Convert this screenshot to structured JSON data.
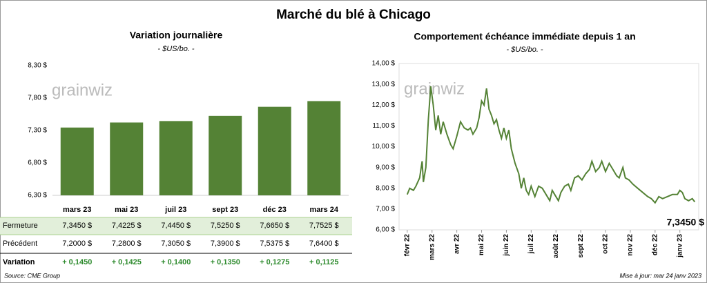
{
  "title": "Marché du blé à Chicago",
  "chart_data": [
    {
      "type": "bar",
      "title": "Variation journalière",
      "subtitle": "- $US/bo. -",
      "logo": "grainwiz",
      "color": "#548235",
      "categories": [
        "mars 23",
        "mai 23",
        "juil 23",
        "sept 23",
        "déc 23",
        "mars 24"
      ],
      "values": [
        7.345,
        7.4225,
        7.445,
        7.525,
        7.665,
        7.7525
      ],
      "value_labels": [
        "7,3450  $",
        "7,4225  $",
        "7,4450  $",
        "7,5250  $",
        "7,6650  $",
        "7,7525  $"
      ],
      "ylim": [
        6.3,
        8.3
      ],
      "yticks": [
        {
          "value": 6.3,
          "label": "6,30 $"
        },
        {
          "value": 6.8,
          "label": "6,80 $"
        },
        {
          "value": 7.3,
          "label": "7,30 $"
        },
        {
          "value": 7.8,
          "label": "7,80 $"
        },
        {
          "value": 8.3,
          "label": "8,30 $"
        }
      ]
    },
    {
      "type": "line",
      "title": "Comportement  échéance immédiate depuis 1 an",
      "subtitle": "- $US/bo. -",
      "logo": "grainwiz",
      "color": "#548235",
      "annotation": "7,3450 $",
      "x": [
        0,
        0.1,
        0.25,
        0.35,
        0.5,
        0.6,
        0.65,
        0.75,
        0.85,
        0.95,
        1.05,
        1.15,
        1.25,
        1.35,
        1.45,
        1.6,
        1.75,
        1.85,
        2.0,
        2.15,
        2.3,
        2.45,
        2.55,
        2.65,
        2.8,
        2.9,
        3.0,
        3.1,
        3.2,
        3.3,
        3.4,
        3.5,
        3.6,
        3.7,
        3.8,
        3.9,
        4.0,
        4.1,
        4.2,
        4.35,
        4.5,
        4.6,
        4.7,
        4.8,
        4.9,
        5.0,
        5.15,
        5.3,
        5.45,
        5.6,
        5.75,
        5.85,
        6.0,
        6.1,
        6.2,
        6.35,
        6.5,
        6.6,
        6.75,
        6.9,
        7.05,
        7.2,
        7.35,
        7.45,
        7.6,
        7.75,
        7.85,
        8.0,
        8.15,
        8.3,
        8.45,
        8.55,
        8.7,
        8.8,
        8.95,
        9.1,
        9.3,
        9.5,
        9.7,
        9.85,
        10.0,
        10.15,
        10.3,
        10.5,
        10.7,
        10.9,
        11.0,
        11.1,
        11.2,
        11.35,
        11.5,
        11.6
      ],
      "values": [
        7.7,
        8.0,
        7.9,
        8.1,
        8.5,
        9.3,
        8.3,
        9.0,
        11.3,
        12.9,
        12.0,
        10.8,
        11.5,
        10.6,
        11.2,
        10.6,
        10.1,
        9.9,
        10.5,
        11.2,
        10.9,
        10.8,
        10.9,
        10.6,
        10.9,
        11.4,
        12.2,
        12.0,
        12.8,
        11.8,
        11.5,
        11.1,
        11.3,
        10.8,
        10.4,
        10.9,
        10.4,
        10.8,
        9.9,
        9.2,
        8.7,
        8.0,
        8.5,
        7.9,
        7.7,
        8.1,
        7.6,
        8.1,
        8.0,
        7.7,
        7.4,
        7.9,
        7.6,
        7.4,
        7.8,
        8.1,
        8.2,
        7.9,
        8.5,
        8.6,
        8.4,
        8.7,
        8.9,
        9.3,
        8.8,
        9.0,
        9.3,
        8.8,
        9.2,
        8.9,
        8.6,
        8.5,
        9.0,
        8.5,
        8.4,
        8.2,
        8.0,
        7.8,
        7.6,
        7.5,
        7.3,
        7.6,
        7.5,
        7.6,
        7.7,
        7.7,
        7.9,
        7.8,
        7.5,
        7.4,
        7.5,
        7.345
      ],
      "xlim": [
        -0.33,
        11.76
      ],
      "xticks": [
        {
          "value": 0,
          "label": "févr 22"
        },
        {
          "value": 1,
          "label": "mars 22"
        },
        {
          "value": 2,
          "label": "avr 22"
        },
        {
          "value": 3,
          "label": "mai 22"
        },
        {
          "value": 4,
          "label": "juin 22"
        },
        {
          "value": 5,
          "label": "juil 22"
        },
        {
          "value": 6,
          "label": "août 22"
        },
        {
          "value": 7,
          "label": "sept 22"
        },
        {
          "value": 8,
          "label": "oct 22"
        },
        {
          "value": 9,
          "label": "nov 22"
        },
        {
          "value": 10,
          "label": "déc 22"
        },
        {
          "value": 11,
          "label": "janv 23"
        }
      ],
      "ylim": [
        6,
        14
      ],
      "yticks": [
        {
          "value": 6,
          "label": "6,00 $"
        },
        {
          "value": 7,
          "label": "7,00 $"
        },
        {
          "value": 8,
          "label": "8,00 $"
        },
        {
          "value": 9,
          "label": "9,00 $"
        },
        {
          "value": 10,
          "label": "10,00 $"
        },
        {
          "value": 11,
          "label": "11,00 $"
        },
        {
          "value": 12,
          "label": "12,00 $"
        },
        {
          "value": 13,
          "label": "13,00 $"
        },
        {
          "value": 14,
          "label": "14,00 $"
        }
      ]
    }
  ],
  "table": {
    "closing_label": "Fermeture",
    "rows": [
      {
        "label": "Précédent",
        "values": [
          7.2,
          7.28,
          7.305,
          7.39,
          7.5375,
          7.64
        ],
        "value_labels": [
          "7,2000  $",
          "7,2800  $",
          "7,3050  $",
          "7,3900  $",
          "7,5375  $",
          "7,6400  $"
        ]
      },
      {
        "label": "Variation",
        "values": [
          0.145,
          0.1425,
          0.14,
          0.135,
          0.1275,
          0.1125
        ],
        "value_labels": [
          "+ 0,1450",
          "+ 0,1425",
          "+ 0,1400",
          "+ 0,1350",
          "+ 0,1275",
          "+ 0,1125"
        ]
      }
    ]
  },
  "source": "Source: CME Group",
  "updated": "Mise à jour: mar 24 janv 2023"
}
